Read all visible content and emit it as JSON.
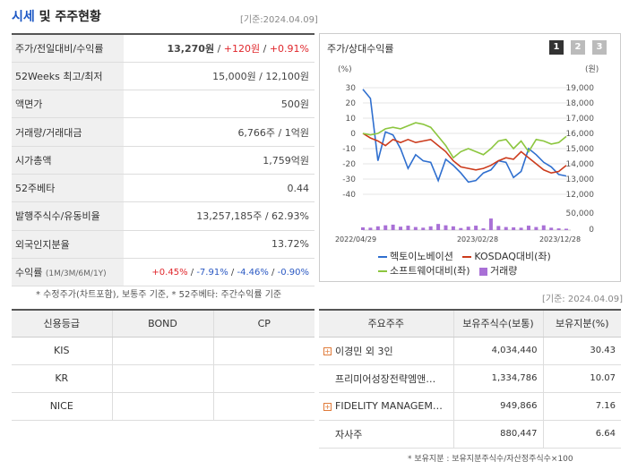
{
  "header": {
    "title_accent": "시세",
    "title_rest": " 및 주주현황",
    "basis": "[기준:2024.04.09]"
  },
  "quote": {
    "price_row": {
      "label": "주가/전일대비/수익률",
      "price": "13,270원",
      "sep1": " / ",
      "change": "+120원",
      "sep2": " / ",
      "rate": "+0.91%"
    },
    "rows": [
      {
        "label": "52Weeks 최고/최저",
        "value": "15,000원 / 12,100원"
      },
      {
        "label": "액면가",
        "value": "500원"
      },
      {
        "label": "거래량/거래대금",
        "value": "6,766주 / 1억원"
      },
      {
        "label": "시가총액",
        "value": "1,759억원"
      },
      {
        "label": "52주베타",
        "value": "0.44"
      },
      {
        "label": "발행주식수/유동비율",
        "value": "13,257,185주 / 62.93%"
      },
      {
        "label": "외국인지분율",
        "value": "13.72%"
      }
    ],
    "return_row": {
      "label": "수익률",
      "label_small": "(1M/3M/6M/1Y)",
      "r1": "+0.45%",
      "r2": "-7.91%",
      "r3": "-4.46%",
      "r4": "-0.90%",
      "sep": "/ "
    },
    "note": "* 수정주가(차트포함), 보통주 기준, * 52주베타: 주간수익률 기준"
  },
  "chart": {
    "title": "주가/상대수익률",
    "tabs": [
      "1",
      "2",
      "3"
    ],
    "basis": "[기준: 2024.04.09]",
    "left_unit": "(%)",
    "right_unit": "(원)",
    "legend": {
      "s1": "헥토이노베이션",
      "s2": "KOSDAQ대비(좌)",
      "s3": "소프트웨어대비(좌)",
      "s4": "거래량"
    },
    "colors": {
      "s1": "#2f6fcf",
      "s2": "#cc3b1c",
      "s3": "#8cc63f",
      "s4": "#a970d6"
    }
  },
  "chart_data": {
    "type": "line",
    "x_ticks": [
      "2022/04/29",
      "2023/02/28",
      "2023/12/28"
    ],
    "left_axis": {
      "unit": "(%)",
      "ticks": [
        30,
        20,
        10,
        0,
        -10,
        -20,
        -30,
        -40
      ],
      "range": [
        -40,
        30
      ]
    },
    "right_axis": {
      "unit": "(원)",
      "ticks": [
        "19,000",
        "18,000",
        "17,000",
        "16,000",
        "15,000",
        "14,000",
        "13,000",
        "12,000"
      ],
      "range": [
        12000,
        19000
      ]
    },
    "volume_axis": {
      "ticks": [
        "50,000",
        "0"
      ],
      "max": 50000
    },
    "series": [
      {
        "name": "헥토이노베이션",
        "axis": "right",
        "values": [
          18900,
          18300,
          14200,
          16100,
          15900,
          15000,
          13700,
          14600,
          14200,
          14100,
          12900,
          14300,
          13900,
          13400,
          12800,
          12900,
          13400,
          13600,
          14200,
          14100,
          13100,
          13500,
          15000,
          14600,
          14100,
          13800,
          13300,
          13200
        ]
      },
      {
        "name": "KOSDAQ대비(좌)",
        "axis": "left",
        "values": [
          0,
          -3,
          -5,
          -8,
          -4,
          -6,
          -4,
          -6,
          -5,
          -4,
          -8,
          -12,
          -18,
          -22,
          -23,
          -24,
          -23,
          -21,
          -18,
          -16,
          -17,
          -12,
          -16,
          -20,
          -24,
          -26,
          -25,
          -21
        ]
      },
      {
        "name": "소프트웨어대비(좌)",
        "axis": "left",
        "values": [
          0,
          -1,
          0,
          3,
          4,
          3,
          5,
          7,
          6,
          4,
          -2,
          -8,
          -16,
          -12,
          -10,
          -12,
          -14,
          -10,
          -5,
          -4,
          -10,
          -5,
          -12,
          -4,
          -5,
          -7,
          -6,
          -2
        ]
      },
      {
        "name": "거래량",
        "axis": "volume",
        "values": [
          8000,
          7000,
          11000,
          14000,
          16000,
          10000,
          13000,
          9000,
          7000,
          11000,
          18000,
          14000,
          11000,
          6000,
          10000,
          13000,
          5000,
          34000,
          12000,
          9000,
          8000,
          7000,
          13000,
          9000,
          14000,
          7000,
          5000,
          4000
        ]
      }
    ]
  },
  "credit": {
    "headers": [
      "신용등급",
      "BOND",
      "CP"
    ],
    "rows": [
      [
        "KIS",
        "",
        ""
      ],
      [
        "KR",
        "",
        ""
      ],
      [
        "NICE",
        "",
        ""
      ]
    ]
  },
  "holders": {
    "headers": [
      "주요주주",
      "보유주식수(보통)",
      "보유지분(%)"
    ],
    "rows": [
      {
        "plus": true,
        "name": "이경민 외 3인",
        "shares": "4,034,440",
        "pct": "30.43"
      },
      {
        "plus": false,
        "name": "프리미어성장전략엠앤…",
        "shares": "1,334,786",
        "pct": "10.07"
      },
      {
        "plus": true,
        "name": "FIDELITY MANAGEM…",
        "shares": "949,866",
        "pct": "7.16"
      },
      {
        "plus": false,
        "name": "자사주",
        "shares": "880,447",
        "pct": "6.64"
      }
    ],
    "note": "* 보유지분 : 보유지분주식수/자산정주식수×100"
  }
}
